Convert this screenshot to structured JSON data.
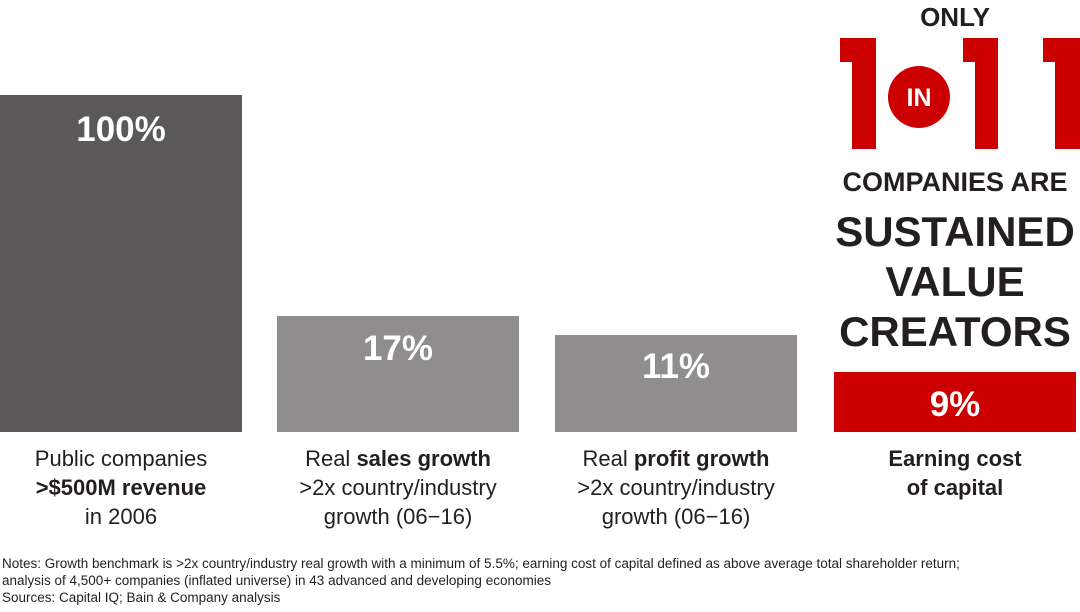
{
  "chart_data": {
    "type": "bar",
    "categories": [
      [
        {
          "t": "Public companies",
          "b": false
        },
        {
          "t": ">$500M revenue",
          "b": true
        },
        {
          "t": "in 2006",
          "b": false
        }
      ],
      [
        {
          "t": "Real ",
          "b": false,
          "inline": true
        },
        {
          "t": "sales growth",
          "b": true
        },
        {
          "t": ">2x country/industry",
          "b": false
        },
        {
          "t": "growth (06−16)",
          "b": false
        }
      ],
      [
        {
          "t": "Real ",
          "b": false,
          "inline": true
        },
        {
          "t": "profit growth",
          "b": true
        },
        {
          "t": ">2x country/industry",
          "b": false
        },
        {
          "t": "growth (06−16)",
          "b": false
        }
      ],
      [
        {
          "t": "Earning cost",
          "b": true
        },
        {
          "t": "of capital",
          "b": true
        }
      ]
    ],
    "values": [
      100,
      17,
      11,
      9
    ],
    "value_labels": [
      "100%",
      "17%",
      "11%",
      "9%"
    ],
    "colors": [
      "#5a5859",
      "#8f8d8e",
      "#8f8d8e",
      "#cc0000"
    ],
    "title": "",
    "xlabel": "",
    "ylabel": "",
    "grid": false
  },
  "headline": {
    "only": "ONLY",
    "one_in_eleven": "1 IN 11",
    "in": "IN",
    "line1": "COMPANIES ARE",
    "line2": "SUSTAINED",
    "line3": "VALUE",
    "line4": "CREATORS",
    "accent": "#cc0000"
  },
  "notes": [
    "Notes: Growth benchmark is >2x country/industry real growth with a minimum of 5.5%; earning cost of capital defined as above average total shareholder return;",
    "analysis of 4,500+ companies (inflated universe) in 43 advanced and developing economies",
    "Sources: Capital IQ; Bain & Company analysis"
  ]
}
